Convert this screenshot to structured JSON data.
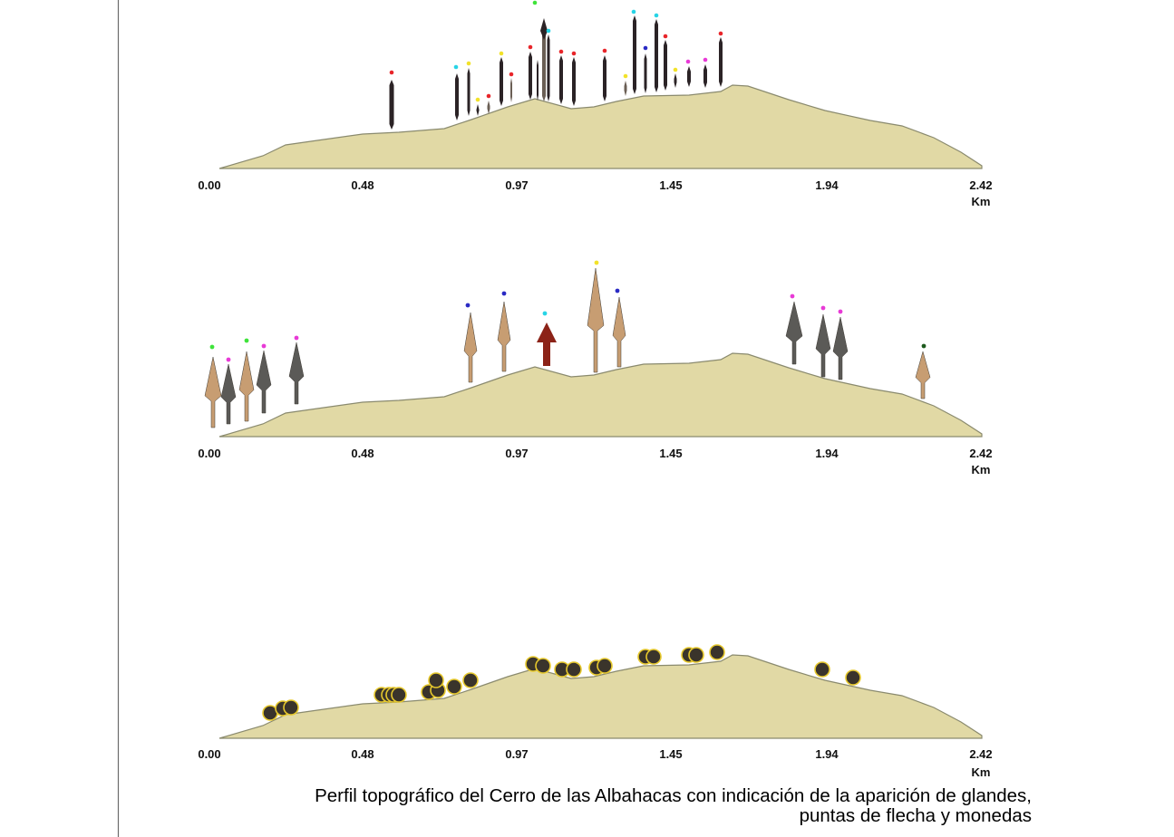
{
  "panels": [
    {
      "id": "panel-glandes",
      "items_type": "glandes",
      "axis": {
        "ticks": [
          "0.00",
          "0.48",
          "0.97",
          "1.45",
          "1.94",
          "2.42"
        ],
        "unit": "Km"
      },
      "dot_colors": [
        "red",
        "cyan",
        "yellow",
        "yellow",
        "red",
        "yellow",
        "red",
        "green",
        "cyan",
        "red",
        "red",
        "red",
        "red",
        "yellow",
        "cyan",
        "blue",
        "cyan",
        "red",
        "yellow",
        "magenta",
        "magenta",
        "red"
      ]
    },
    {
      "id": "panel-puntas-de-flecha",
      "items_type": "puntas de flecha",
      "axis": {
        "ticks": [
          "0.00",
          "0.48",
          "0.97",
          "1.45",
          "1.94",
          "2.42"
        ],
        "unit": "Km"
      },
      "dot_colors": [
        "green",
        "magenta",
        "green",
        "magenta",
        "magenta",
        "blue",
        "blue",
        "cyan",
        "yellow",
        "blue",
        "magenta",
        "magenta",
        "magenta",
        "darkgreen"
      ]
    },
    {
      "id": "panel-monedas",
      "items_type": "monedas",
      "axis": {
        "ticks": [
          "0.00",
          "0.48",
          "0.97",
          "1.45",
          "1.94",
          "2.42"
        ],
        "unit": "Km"
      },
      "coin_count": 33
    }
  ],
  "caption": {
    "line1": "Perfil topográfico del Cerro de las Albahacas con indicación de la aparición de glandes,",
    "line2": "puntas de flecha y monedas"
  },
  "colors": {
    "terrain_fill": "#e1d9a5",
    "terrain_stroke": "#8a8a6e",
    "dot_red": "#e8252a",
    "dot_cyan": "#27d4e6",
    "dot_yellow": "#f2e22a",
    "dot_green": "#3fe33a",
    "dot_blue": "#2a2ac4",
    "dot_magenta": "#e83ad6",
    "dot_darkgreen": "#1d5a1d",
    "coin_fill": "#3a342b",
    "coin_stroke": "#e6c82c",
    "sling_dark": "#2b2326",
    "bronze_point": "#c79d72",
    "iron_point": "#5b5a57",
    "arrow_red": "#8c2318"
  }
}
